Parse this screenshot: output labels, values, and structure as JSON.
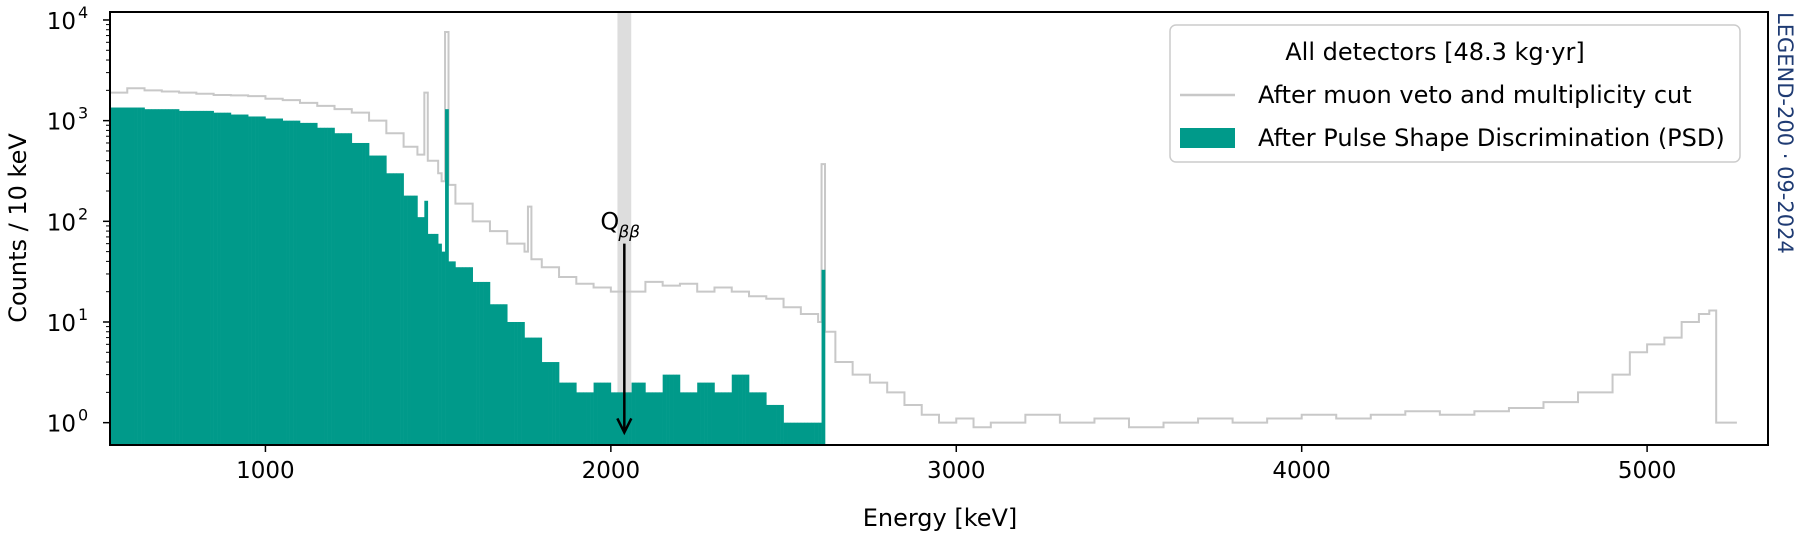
{
  "chart_data": {
    "type": "histogram",
    "xlabel": "Energy [keV]",
    "ylabel": "Counts / 10 keV",
    "xlim": [
      550,
      5350
    ],
    "ylim": [
      0.6,
      12000
    ],
    "yscale": "log",
    "bin_width_keV": 10,
    "x_ticks": [
      {
        "value": 1000,
        "label": "1000"
      },
      {
        "value": 2000,
        "label": "2000"
      },
      {
        "value": 3000,
        "label": "3000"
      },
      {
        "value": 4000,
        "label": "4000"
      },
      {
        "value": 5000,
        "label": "5000"
      }
    ],
    "y_ticks": [
      {
        "value": 1,
        "base": "10",
        "exp": "0"
      },
      {
        "value": 10,
        "base": "10",
        "exp": "1"
      },
      {
        "value": 100,
        "base": "10",
        "exp": "2"
      },
      {
        "value": 1000,
        "base": "10",
        "exp": "3"
      },
      {
        "value": 10000,
        "base": "10",
        "exp": "4"
      }
    ],
    "legend": {
      "title": "All detectors [48.3 kg·yr]",
      "position": "top-right",
      "entries": [
        {
          "label": "After muon veto and multiplicity cut",
          "style": "line",
          "color": "#c8c8c8"
        },
        {
          "label": "After Pulse Shape Discrimination (PSD)",
          "style": "fill",
          "color": "#009a8a"
        }
      ]
    },
    "annotations": [
      {
        "text_main": "Q",
        "text_sub": "ββ",
        "x": 2039,
        "arrow_from_y": 60,
        "arrow_to_y": 0.8
      }
    ],
    "highlight_band": {
      "x": [
        2019,
        2059
      ],
      "color": "#dddddd"
    },
    "series": [
      {
        "name": "After muon veto and multiplicity cut",
        "style": "step",
        "color": "#c8c8c8",
        "points": [
          [
            550,
            1900
          ],
          [
            600,
            2100
          ],
          [
            650,
            2000
          ],
          [
            700,
            1950
          ],
          [
            750,
            1900
          ],
          [
            800,
            1850
          ],
          [
            850,
            1800
          ],
          [
            900,
            1780
          ],
          [
            950,
            1750
          ],
          [
            1000,
            1650
          ],
          [
            1050,
            1600
          ],
          [
            1100,
            1500
          ],
          [
            1150,
            1400
          ],
          [
            1200,
            1300
          ],
          [
            1250,
            1200
          ],
          [
            1300,
            1000
          ],
          [
            1350,
            750
          ],
          [
            1400,
            550
          ],
          [
            1440,
            460
          ],
          [
            1460,
            1900
          ],
          [
            1470,
            400
          ],
          [
            1500,
            300
          ],
          [
            1510,
            250
          ],
          [
            1520,
            7600
          ],
          [
            1530,
            230
          ],
          [
            1550,
            150
          ],
          [
            1600,
            100
          ],
          [
            1650,
            80
          ],
          [
            1700,
            60
          ],
          [
            1750,
            50
          ],
          [
            1760,
            140
          ],
          [
            1770,
            42
          ],
          [
            1800,
            35
          ],
          [
            1850,
            28
          ],
          [
            1900,
            24
          ],
          [
            1950,
            22
          ],
          [
            2000,
            20
          ],
          [
            2050,
            20
          ],
          [
            2100,
            25
          ],
          [
            2150,
            23
          ],
          [
            2200,
            24
          ],
          [
            2250,
            20
          ],
          [
            2300,
            22
          ],
          [
            2350,
            20
          ],
          [
            2400,
            18
          ],
          [
            2450,
            17
          ],
          [
            2500,
            14
          ],
          [
            2550,
            12
          ],
          [
            2600,
            10
          ],
          [
            2610,
            370
          ],
          [
            2620,
            8
          ],
          [
            2650,
            4
          ],
          [
            2700,
            3
          ],
          [
            2750,
            2.5
          ],
          [
            2800,
            2
          ],
          [
            2850,
            1.5
          ],
          [
            2900,
            1.2
          ],
          [
            2950,
            1
          ],
          [
            3000,
            1.1
          ],
          [
            3050,
            0.9
          ],
          [
            3100,
            1
          ],
          [
            3150,
            1
          ],
          [
            3200,
            1.2
          ],
          [
            3300,
            1
          ],
          [
            3400,
            1.1
          ],
          [
            3500,
            0.9
          ],
          [
            3600,
            1
          ],
          [
            3700,
            1.1
          ],
          [
            3800,
            1
          ],
          [
            3900,
            1.1
          ],
          [
            4000,
            1.2
          ],
          [
            4100,
            1.1
          ],
          [
            4200,
            1.2
          ],
          [
            4300,
            1.3
          ],
          [
            4400,
            1.2
          ],
          [
            4500,
            1.3
          ],
          [
            4600,
            1.4
          ],
          [
            4700,
            1.6
          ],
          [
            4800,
            2
          ],
          [
            4900,
            3
          ],
          [
            4950,
            5
          ],
          [
            5000,
            6
          ],
          [
            5050,
            7
          ],
          [
            5100,
            10
          ],
          [
            5150,
            12
          ],
          [
            5180,
            13
          ],
          [
            5200,
            1
          ],
          [
            5250,
            1
          ]
        ]
      },
      {
        "name": "After Pulse Shape Discrimination (PSD)",
        "style": "filled-step",
        "color": "#009a8a",
        "points": [
          [
            550,
            1350
          ],
          [
            600,
            1350
          ],
          [
            650,
            1300
          ],
          [
            700,
            1300
          ],
          [
            750,
            1250
          ],
          [
            800,
            1250
          ],
          [
            850,
            1200
          ],
          [
            900,
            1150
          ],
          [
            950,
            1100
          ],
          [
            1000,
            1050
          ],
          [
            1050,
            1000
          ],
          [
            1100,
            950
          ],
          [
            1150,
            850
          ],
          [
            1200,
            750
          ],
          [
            1250,
            600
          ],
          [
            1300,
            450
          ],
          [
            1350,
            300
          ],
          [
            1400,
            180
          ],
          [
            1440,
            110
          ],
          [
            1460,
            160
          ],
          [
            1470,
            75
          ],
          [
            1500,
            60
          ],
          [
            1510,
            50
          ],
          [
            1520,
            1300
          ],
          [
            1530,
            40
          ],
          [
            1550,
            35
          ],
          [
            1600,
            25
          ],
          [
            1650,
            15
          ],
          [
            1700,
            10
          ],
          [
            1750,
            7
          ],
          [
            1800,
            4
          ],
          [
            1850,
            2.5
          ],
          [
            1900,
            2
          ],
          [
            1950,
            2.5
          ],
          [
            2000,
            2
          ],
          [
            2060,
            2.5
          ],
          [
            2100,
            2
          ],
          [
            2150,
            3
          ],
          [
            2200,
            2
          ],
          [
            2250,
            2.5
          ],
          [
            2300,
            2
          ],
          [
            2350,
            3
          ],
          [
            2400,
            2
          ],
          [
            2450,
            1.5
          ],
          [
            2500,
            1
          ],
          [
            2600,
            1
          ],
          [
            2610,
            33
          ]
        ]
      }
    ]
  },
  "watermark": "LEGEND-200 · 09-2024"
}
